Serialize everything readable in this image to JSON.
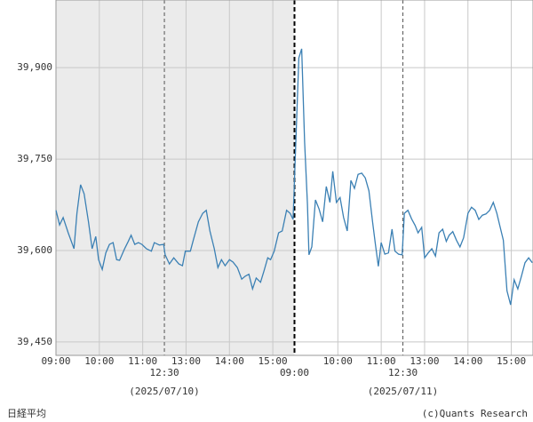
{
  "chart_data": {
    "type": "line",
    "x": [
      0,
      5,
      10,
      17,
      25,
      29,
      34,
      39,
      45,
      50,
      55,
      59,
      64,
      69,
      74,
      79,
      84,
      88,
      95,
      100,
      104,
      109,
      114,
      119,
      125,
      132,
      136,
      143,
      149,
      151,
      157,
      163,
      170,
      175,
      179,
      186,
      190,
      197,
      203,
      208,
      213,
      219,
      224,
      229,
      234,
      240,
      245,
      251,
      257,
      262,
      267,
      272,
      277,
      283,
      288,
      293,
      297,
      302,
      308,
      313,
      319,
      324,
      328,
      336,
      340,
      344,
      348,
      350,
      354,
      359,
      364,
      369,
      374,
      379,
      383,
      388,
      393,
      398,
      403,
      408,
      413,
      418,
      423,
      428,
      433,
      438,
      442,
      446,
      450,
      455,
      460,
      465,
      469,
      474,
      479,
      482,
      487,
      492,
      497,
      501,
      506,
      510,
      515,
      520,
      525,
      530,
      535,
      540,
      544,
      549,
      554,
      559,
      564,
      570,
      575,
      580,
      585,
      590,
      595,
      600,
      605,
      610,
      614,
      619,
      624,
      629,
      634,
      639,
      644,
      649,
      654,
      659
    ],
    "series": [
      {
        "name": "日経平均",
        "color": "#3b80b4",
        "values": [
          39666,
          39642,
          39654,
          39629,
          39603,
          39661,
          39708,
          39693,
          39647,
          39603,
          39623,
          39585,
          39569,
          39596,
          39610,
          39613,
          39585,
          39584,
          39603,
          39615,
          39625,
          39610,
          39613,
          39610,
          39603,
          39599,
          39613,
          39609,
          39610,
          39593,
          39578,
          39588,
          39578,
          39575,
          39599,
          39599,
          39617,
          39647,
          39661,
          39666,
          39632,
          39603,
          39572,
          39585,
          39575,
          39585,
          39581,
          39572,
          39553,
          39558,
          39561,
          39537,
          39555,
          39548,
          39567,
          39588,
          39585,
          39599,
          39629,
          39632,
          39666,
          39661,
          39651,
          39916,
          39931,
          39778,
          39676,
          39593,
          39606,
          39683,
          39668,
          39647,
          39705,
          39679,
          39730,
          39679,
          39687,
          39654,
          39632,
          39715,
          39702,
          39725,
          39727,
          39719,
          39698,
          39647,
          39610,
          39574,
          39613,
          39594,
          39596,
          39635,
          39599,
          39594,
          39593,
          39661,
          39666,
          39652,
          39641,
          39629,
          39638,
          39588,
          39596,
          39603,
          39591,
          39629,
          39635,
          39615,
          39625,
          39631,
          39617,
          39606,
          39621,
          39661,
          39671,
          39666,
          39651,
          39658,
          39660,
          39666,
          39679,
          39661,
          39641,
          39617,
          39534,
          39511,
          39552,
          39537,
          39558,
          39580,
          39588,
          39580
        ]
      }
    ],
    "xlim": [
      0,
      660
    ],
    "ylim": [
      39428,
      40011
    ],
    "xticks": [
      {
        "value": 0,
        "label": "09:00"
      },
      {
        "value": 60,
        "label": "10:00"
      },
      {
        "value": 120,
        "label": "11:00"
      },
      {
        "value": 150,
        "label": "12:30"
      },
      {
        "value": 180,
        "label": "13:00"
      },
      {
        "value": 240,
        "label": "14:00"
      },
      {
        "value": 300,
        "label": "15:00"
      },
      {
        "value": 330,
        "label": "09:00"
      },
      {
        "value": 390,
        "label": "10:00"
      },
      {
        "value": 450,
        "label": "11:00"
      },
      {
        "value": 480,
        "label": "12:30"
      },
      {
        "value": 510,
        "label": "13:00"
      },
      {
        "value": 570,
        "label": "14:00"
      },
      {
        "value": 630,
        "label": "15:00"
      }
    ],
    "yticks": [
      {
        "value": 39450,
        "label": "39,450"
      },
      {
        "value": 39600,
        "label": "39,600"
      },
      {
        "value": 39750,
        "label": "39,750"
      },
      {
        "value": 39900,
        "label": "39,900"
      }
    ],
    "session_breaks": [
      150,
      480
    ],
    "day_breaks": [
      330
    ],
    "date_labels": [
      "(2025/07/10)",
      "(2025/07/11)"
    ],
    "grid": true,
    "credit": "(c)Quants Research"
  }
}
